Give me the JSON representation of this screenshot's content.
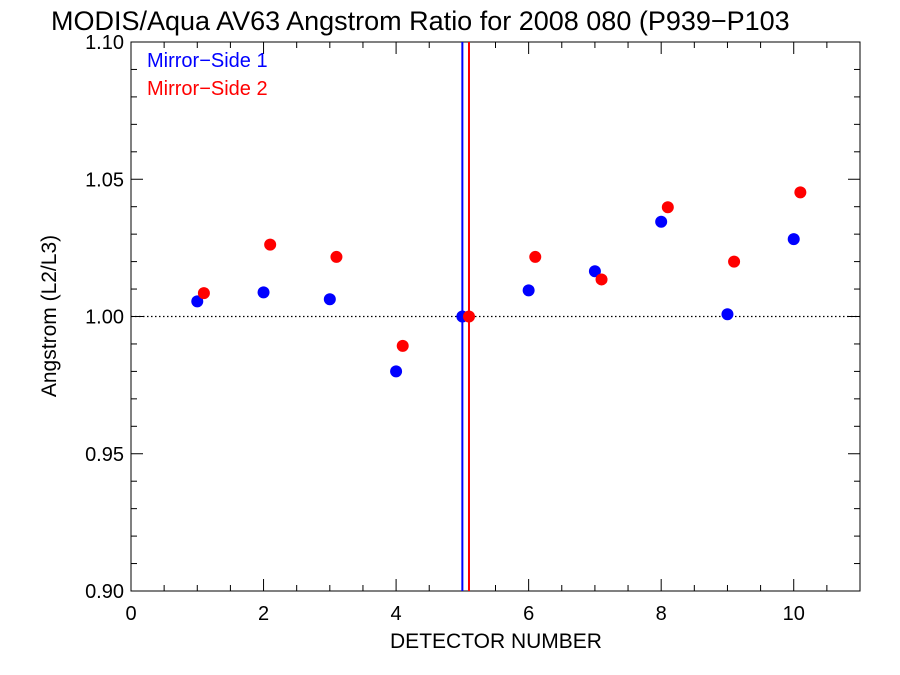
{
  "chart_data": {
    "type": "scatter",
    "title": "MODIS/Aqua AV63 Angstrom Ratio for 2008 080 (P939−P103",
    "xlabel": "DETECTOR NUMBER",
    "ylabel": "Angstrom (L2/L3)",
    "xlim": [
      0,
      11
    ],
    "ylim": [
      0.9,
      1.1
    ],
    "x_ticks": [
      0,
      2,
      4,
      6,
      8,
      10
    ],
    "y_ticks": [
      0.9,
      0.95,
      1.0,
      1.05,
      1.1
    ],
    "x_tick_labels": [
      "0",
      "2",
      "4",
      "6",
      "8",
      "10"
    ],
    "y_tick_labels": [
      "0.90",
      "0.95",
      "1.00",
      "1.05",
      "1.10"
    ],
    "reference_line": 1.0,
    "vertical_lines": [
      {
        "x": 5.0,
        "color": "#0000ff"
      },
      {
        "x": 5.1,
        "color": "#ff0000"
      }
    ],
    "legend_position": "top-left",
    "series": [
      {
        "name": "Mirror−Side 1",
        "color": "#0000ff",
        "x": [
          1,
          2,
          3,
          4,
          5,
          6,
          7,
          8,
          9,
          10
        ],
        "y": [
          1.0055,
          1.0088,
          1.0063,
          0.98,
          1.0,
          1.0095,
          1.0165,
          1.0345,
          1.0008,
          1.0282
        ]
      },
      {
        "name": "Mirror−Side 2",
        "color": "#ff0000",
        "x": [
          1.1,
          2.1,
          3.1,
          4.1,
          5.1,
          6.1,
          7.1,
          8.1,
          9.1,
          10.1
        ],
        "y": [
          1.0085,
          1.0262,
          1.0217,
          0.9893,
          1.0,
          1.0217,
          1.0135,
          1.0398,
          1.02,
          1.0452
        ]
      }
    ]
  }
}
